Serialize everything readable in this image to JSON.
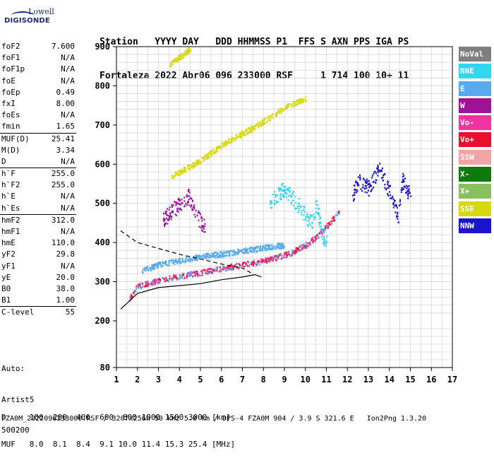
{
  "logo": {
    "line1": "Lowell",
    "line2": "DIGISONDE"
  },
  "header": {
    "labels": "Station   YYYY DAY   DDD HHMMSS P1  FFS S AXN PPS IGA PS",
    "values": "Fortaleza 2022 Abr06 096 233000 RSF     1 714 100 10+ 11"
  },
  "params": [
    {
      "name": "foF2",
      "value": "7.600"
    },
    {
      "name": "foF1",
      "value": "N/A"
    },
    {
      "name": "foF1p",
      "value": "N/A"
    },
    {
      "name": "foE",
      "value": "N/A"
    },
    {
      "name": "foEp",
      "value": "0.49"
    },
    {
      "name": "fxI",
      "value": "8.00"
    },
    {
      "name": "foEs",
      "value": "N/A"
    },
    {
      "name": "fmin",
      "value": "1.65"
    },
    {
      "name": "MUF(D)",
      "value": "25.41"
    },
    {
      "name": "M(D)",
      "value": "3.34"
    },
    {
      "name": "D",
      "value": "N/A"
    },
    {
      "name": "h`F",
      "value": "255.0"
    },
    {
      "name": "h`F2",
      "value": "255.0"
    },
    {
      "name": "h`E",
      "value": "N/A"
    },
    {
      "name": "h`Es",
      "value": "N/A"
    },
    {
      "name": "hmF2",
      "value": "312.0"
    },
    {
      "name": "hmF1",
      "value": "N/A"
    },
    {
      "name": "hmE",
      "value": "110.0"
    },
    {
      "name": "yF2",
      "value": "29.8"
    },
    {
      "name": "yF1",
      "value": "N/A"
    },
    {
      "name": "yE",
      "value": "20.0"
    },
    {
      "name": "B0",
      "value": "38.0"
    },
    {
      "name": "B1",
      "value": "1.00"
    },
    {
      "name": "C-level",
      "value": "55"
    }
  ],
  "auto": {
    "line1": "Auto:",
    "line2": "Artist5",
    "line3": "500200"
  },
  "legend": [
    {
      "label": "NoVal",
      "color": "#7f7f7f"
    },
    {
      "label": "NNE",
      "color": "#33d6f0"
    },
    {
      "label": "E",
      "color": "#55aaf0"
    },
    {
      "label": "W",
      "color": "#a0119a"
    },
    {
      "label": "Vo-",
      "color": "#f0339f"
    },
    {
      "label": "Vo+",
      "color": "#e8102a"
    },
    {
      "label": "SSW",
      "color": "#f2a5a5"
    },
    {
      "label": "X-",
      "color": "#0e7a0e"
    },
    {
      "label": "X+",
      "color": "#88c060"
    },
    {
      "label": "SSE",
      "color": "#d8d80e"
    },
    {
      "label": "NNW",
      "color": "#1a14cc"
    }
  ],
  "chart_data": {
    "type": "scatter",
    "title": "",
    "xlabel": "",
    "ylabel": "",
    "xlim": [
      1,
      17
    ],
    "ylim": [
      80,
      900
    ],
    "x_ticks": [
      1,
      2,
      3,
      4,
      5,
      6,
      7,
      8,
      9,
      10,
      11,
      12,
      13,
      14,
      15,
      16,
      17
    ],
    "y_ticks": [
      80,
      200,
      300,
      400,
      500,
      600,
      700,
      800,
      900
    ],
    "grid": true,
    "trace_bands": [
      {
        "name": "F2 ordinary trace",
        "color_mix": [
          "#f0339f",
          "#e8102a",
          "#55aaf0"
        ],
        "points": [
          [
            1.6,
            260
          ],
          [
            2,
            290
          ],
          [
            3,
            305
          ],
          [
            4,
            315
          ],
          [
            5,
            325
          ],
          [
            6,
            335
          ],
          [
            7,
            345
          ],
          [
            8,
            355
          ],
          [
            8.7,
            365
          ],
          [
            9.3,
            375
          ],
          [
            10,
            395
          ],
          [
            10.6,
            420
          ],
          [
            11.2,
            455
          ],
          [
            11.6,
            480
          ]
        ]
      },
      {
        "name": "upper E band",
        "color": "#55aaf0",
        "points": [
          [
            2.2,
            330
          ],
          [
            3,
            345
          ],
          [
            4,
            355
          ],
          [
            5,
            365
          ],
          [
            6,
            372
          ],
          [
            7,
            380
          ],
          [
            8,
            388
          ],
          [
            9,
            395
          ]
        ]
      },
      {
        "name": "second hop",
        "color": "#d8d80e",
        "points": [
          [
            3.6,
            570
          ],
          [
            5,
            610
          ],
          [
            6,
            650
          ],
          [
            7,
            680
          ],
          [
            8,
            710
          ],
          [
            9,
            745
          ],
          [
            10,
            770
          ]
        ]
      },
      {
        "name": "third hop",
        "color": "#d8d80e",
        "points": [
          [
            3.5,
            855
          ],
          [
            4,
            875
          ],
          [
            4.5,
            895
          ]
        ]
      },
      {
        "name": "spread F cluster",
        "color": "#a0119a",
        "points": [
          [
            3.2,
            460
          ],
          [
            3.6,
            480
          ],
          [
            4,
            500
          ],
          [
            4.4,
            520
          ],
          [
            4.8,
            470
          ],
          [
            5.2,
            440
          ]
        ]
      },
      {
        "name": "NNE cluster",
        "color": "#33d6f0",
        "points": [
          [
            8.3,
            500
          ],
          [
            8.6,
            520
          ],
          [
            9,
            540
          ],
          [
            10.3,
            450
          ],
          [
            10.5,
            500
          ],
          [
            10.8,
            420
          ],
          [
            11,
            400
          ]
        ]
      },
      {
        "name": "high frequency spread",
        "color": "#1a14cc",
        "points": [
          [
            12.2,
            520
          ],
          [
            12.5,
            560
          ],
          [
            13,
            540
          ],
          [
            13.5,
            590
          ],
          [
            14,
            530
          ],
          [
            14.4,
            470
          ],
          [
            14.6,
            560
          ],
          [
            15,
            520
          ]
        ]
      }
    ],
    "curves": [
      {
        "name": "profile dashed",
        "style": "dashed",
        "points": [
          [
            1.2,
            430
          ],
          [
            2,
            400
          ],
          [
            3,
            385
          ],
          [
            4,
            370
          ],
          [
            5,
            358
          ],
          [
            6,
            345
          ],
          [
            7,
            335
          ],
          [
            7.5,
            320
          ]
        ]
      },
      {
        "name": "profile solid",
        "style": "solid",
        "points": [
          [
            1.2,
            230
          ],
          [
            2,
            270
          ],
          [
            3,
            285
          ],
          [
            4,
            290
          ],
          [
            5,
            295
          ],
          [
            6,
            305
          ],
          [
            7,
            312
          ],
          [
            7.6,
            318
          ],
          [
            7.9,
            312
          ]
        ]
      }
    ]
  },
  "bottom": {
    "line1": "D     100  200  400  600  800 1000 1500 3000 [km]",
    "line2": "MUF   8.0  8.1  8.4  9.1 10.0 11.4 15.3 25.4 [MHz]",
    "line3": "FZA0M_2022096233000.RSF / 320fx256h 50 kHz 5.0 km / DPS-4 FZA0M 904 / 3.9 S 321.6 E   Ion2Png 1.3.20"
  }
}
